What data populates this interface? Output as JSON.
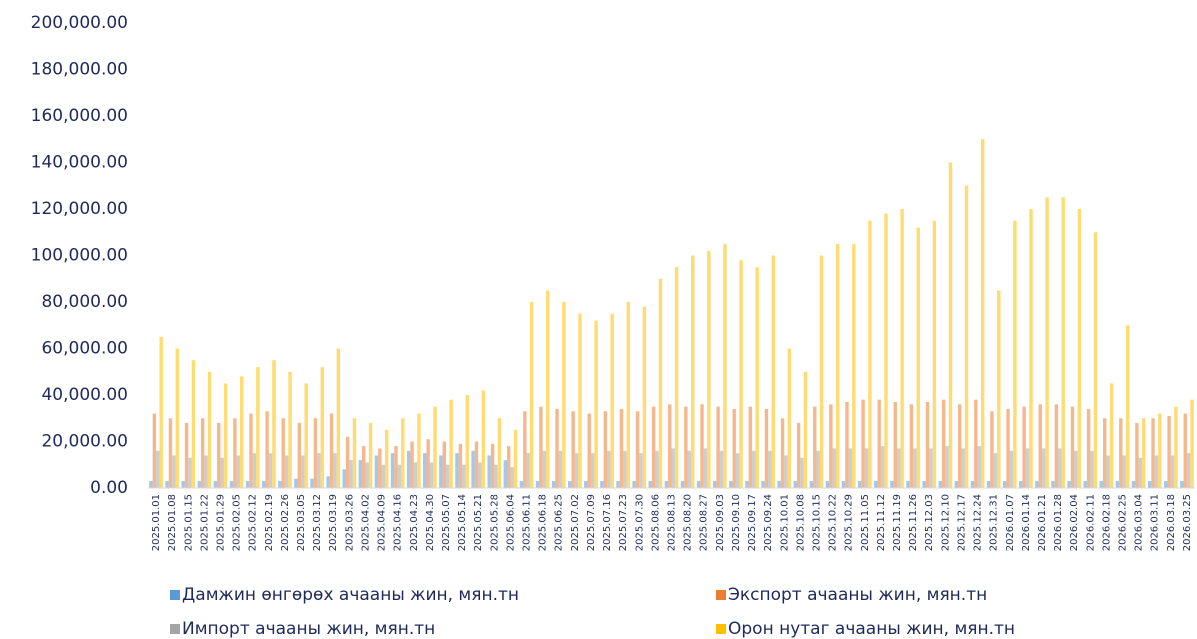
{
  "chart_data": {
    "type": "bar",
    "categories": [
      "2025.01.01",
      "2025.01.08",
      "2025.01.15",
      "2025.01.22",
      "2025.01.29",
      "2025.02.05",
      "2025.02.12",
      "2025.02.19",
      "2025.02.26",
      "2025.03.05",
      "2025.03.12",
      "2025.03.19",
      "2025.03.26",
      "2025.04.02",
      "2025.04.09",
      "2025.04.16",
      "2025.04.23",
      "2025.04.30",
      "2025.05.07",
      "2025.05.14",
      "2025.05.21",
      "2025.05.28",
      "2025.06.04",
      "2025.06.11",
      "2025.06.18",
      "2025.06.25",
      "2025.07.02",
      "2025.07.09",
      "2025.07.16",
      "2025.07.23",
      "2025.07.30",
      "2025.08.06",
      "2025.08.13",
      "2025.08.20",
      "2025.08.27",
      "2025.09.03",
      "2025.09.10",
      "2025.09.17",
      "2025.09.24",
      "2025.10.01",
      "2025.10.08",
      "2025.10.15",
      "2025.10.22",
      "2025.10.29",
      "2025.11.05",
      "2025.11.12",
      "2025.11.19",
      "2025.11.26",
      "2025.12.03",
      "2025.12.10",
      "2025.12.17",
      "2025.12.24",
      "2025.12.31",
      "2026.01.07",
      "2026.01.14",
      "2026.01.21",
      "2026.01.28",
      "2026.02.04",
      "2026.02.11",
      "2026.02.18",
      "2026.02.25",
      "2026.03.04",
      "2026.03.11",
      "2026.03.18",
      "2026.03.25"
    ],
    "series": [
      {
        "name": "Дамжин өнгөрөх ачааны жин, мян.тн",
        "color": "#5b9bd5",
        "values": [
          3000,
          3000,
          3000,
          3000,
          3000,
          3000,
          3000,
          3000,
          3000,
          4000,
          4000,
          5000,
          8000,
          12000,
          14000,
          15000,
          16000,
          15000,
          14000,
          15000,
          16000,
          14000,
          12000,
          3000,
          3000,
          3000,
          3000,
          3000,
          3000,
          3000,
          3000,
          3000,
          3000,
          3000,
          3000,
          3000,
          3000,
          3000,
          3000,
          3000,
          3000,
          3000,
          3000,
          3000,
          3000,
          3000,
          3000,
          3000,
          3000,
          3000,
          3000,
          3000,
          3000,
          3000,
          3000,
          3000,
          3000,
          3000,
          3000,
          3000,
          3000,
          3000,
          3000,
          3000,
          3000
        ]
      },
      {
        "name": "Экспорт ачааны жин, мян.тн",
        "color": "#ed7d31",
        "values": [
          32000,
          30000,
          28000,
          30000,
          28000,
          30000,
          32000,
          33000,
          30000,
          28000,
          30000,
          32000,
          22000,
          18000,
          17000,
          18000,
          20000,
          21000,
          20000,
          19000,
          20000,
          19000,
          18000,
          33000,
          35000,
          34000,
          33000,
          32000,
          33000,
          34000,
          33000,
          35000,
          36000,
          35000,
          36000,
          35000,
          34000,
          35000,
          34000,
          30000,
          28000,
          35000,
          36000,
          37000,
          38000,
          38000,
          37000,
          36000,
          37000,
          38000,
          36000,
          38000,
          33000,
          34000,
          35000,
          36000,
          36000,
          35000,
          34000,
          30000,
          30000,
          28000,
          30000,
          31000,
          32000
        ]
      },
      {
        "name": "Импорт ачааны жин, мян.тн",
        "color": "#a5a5a5",
        "values": [
          16000,
          14000,
          13000,
          14000,
          13000,
          14000,
          15000,
          15000,
          14000,
          14000,
          15000,
          15000,
          12000,
          11000,
          10000,
          10000,
          11000,
          11000,
          10000,
          10000,
          11000,
          10000,
          9000,
          15000,
          16000,
          16000,
          15000,
          15000,
          16000,
          16000,
          15000,
          16000,
          17000,
          16000,
          17000,
          16000,
          15000,
          16000,
          16000,
          14000,
          13000,
          16000,
          17000,
          17000,
          17000,
          18000,
          17000,
          17000,
          17000,
          18000,
          17000,
          18000,
          15000,
          16000,
          17000,
          17000,
          17000,
          16000,
          16000,
          14000,
          14000,
          13000,
          14000,
          14000,
          15000
        ]
      },
      {
        "name": "Орон нутаг ачааны жин, мян.тн",
        "color": "#ffc000",
        "values": [
          65000,
          60000,
          55000,
          50000,
          45000,
          48000,
          52000,
          55000,
          50000,
          45000,
          52000,
          60000,
          30000,
          28000,
          25000,
          30000,
          32000,
          35000,
          38000,
          40000,
          42000,
          30000,
          25000,
          80000,
          85000,
          80000,
          75000,
          72000,
          75000,
          80000,
          78000,
          90000,
          95000,
          100000,
          102000,
          105000,
          98000,
          95000,
          100000,
          60000,
          50000,
          100000,
          105000,
          105000,
          115000,
          118000,
          120000,
          112000,
          115000,
          140000,
          130000,
          150000,
          85000,
          115000,
          120000,
          125000,
          125000,
          120000,
          110000,
          45000,
          70000,
          30000,
          32000,
          35000,
          38000
        ]
      }
    ],
    "ylim": [
      0,
      200000
    ],
    "yticks": [
      {
        "value": 0,
        "label": "0.00"
      },
      {
        "value": 20000,
        "label": "20,000.00"
      },
      {
        "value": 40000,
        "label": "40,000.00"
      },
      {
        "value": 60000,
        "label": "60,000.00"
      },
      {
        "value": 80000,
        "label": "80,000.00"
      },
      {
        "value": 100000,
        "label": "100,000.00"
      },
      {
        "value": 120000,
        "label": "120,000.00"
      },
      {
        "value": 140000,
        "label": "140,000.00"
      },
      {
        "value": 160000,
        "label": "160,000.00"
      },
      {
        "value": 180000,
        "label": "180,000.00"
      },
      {
        "value": 200000,
        "label": "200,000.00"
      }
    ],
    "grid": false,
    "legend": "bottom"
  }
}
